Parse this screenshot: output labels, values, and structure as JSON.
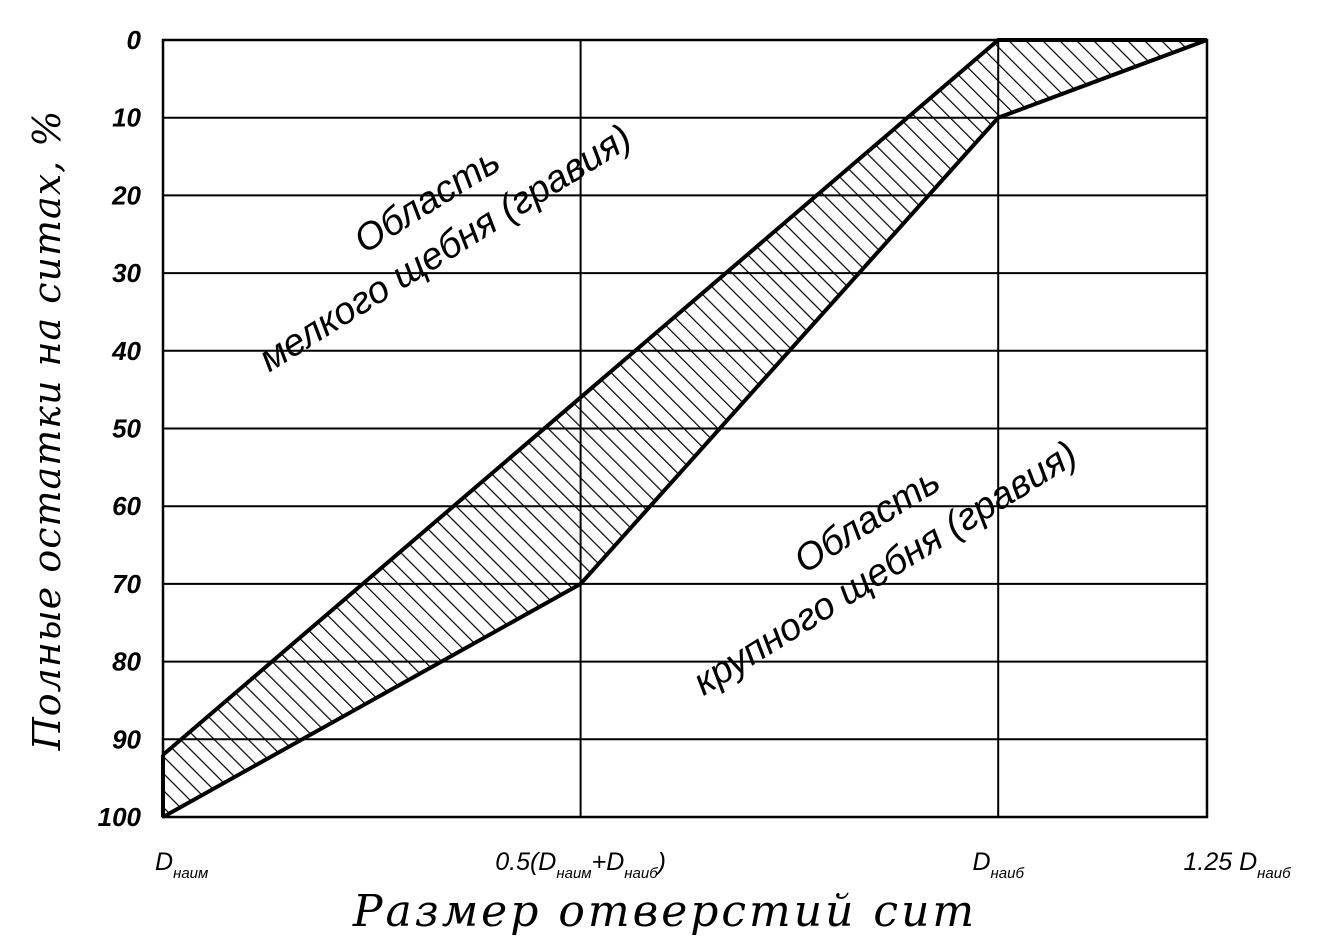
{
  "chart_data": {
    "type": "area",
    "xlabel": "Размер отверстий сит",
    "ylabel": "Полные остатки на ситах, %",
    "ylim": [
      0,
      100
    ],
    "y_inverted": true,
    "grid": true,
    "x_ticks": [
      {
        "x": 0,
        "main": "D",
        "sub": "наим",
        "pre": "",
        "sub2_main": "",
        "sub2": "",
        "post": ""
      },
      {
        "x": 0.5,
        "main": "0.5(D",
        "sub": "наим",
        "pre": "",
        "sub2_main": "+D",
        "sub2": "наиб",
        "post": ")"
      },
      {
        "x": 1,
        "main": "D",
        "sub": "наиб",
        "pre": "",
        "sub2_main": "",
        "sub2": "",
        "post": ""
      },
      {
        "x": 1.25,
        "main": "1.25 D",
        "sub": "наиб",
        "pre": "",
        "sub2_main": "",
        "sub2": "",
        "post": ""
      }
    ],
    "y_ticks": [
      0,
      10,
      20,
      30,
      40,
      50,
      60,
      70,
      80,
      90,
      100
    ],
    "upper_boundary": [
      {
        "x": 0,
        "y": 92
      },
      {
        "x": 0.5,
        "y": 46
      },
      {
        "x": 1,
        "y": 0
      },
      {
        "x": 1.25,
        "y": 0
      }
    ],
    "lower_boundary": [
      {
        "x": 0,
        "y": 100
      },
      {
        "x": 0.5,
        "y": 70
      },
      {
        "x": 1,
        "y": 10
      },
      {
        "x": 1.25,
        "y": 0
      }
    ],
    "annotations": {
      "fine_line1": "Область",
      "fine_line2": "мелкого щебня (гравия)",
      "coarse_line1": "Область",
      "coarse_line2": "крупного щебня (гравия)"
    }
  }
}
